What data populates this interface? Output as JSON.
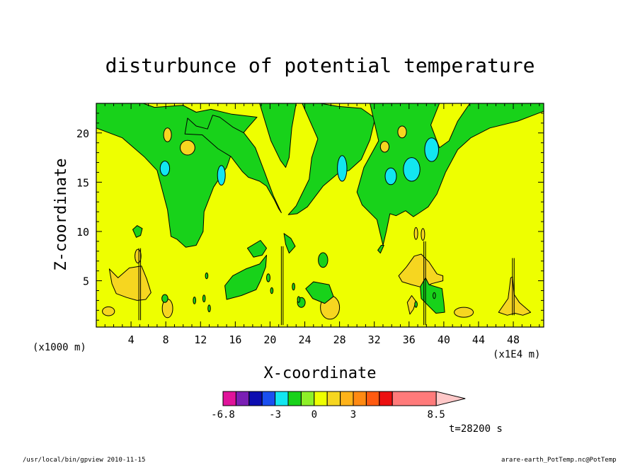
{
  "chart_data": {
    "type": "heatmap",
    "title": "disturbunce of potential temperature",
    "xlabel": "X-coordinate",
    "ylabel": "Z-coordinate",
    "x_unit": "(x1000 m)",
    "x_scale": "(x1E4 m)",
    "xlim": [
      0,
      51.5
    ],
    "ylim": [
      0.3,
      23
    ],
    "x_ticks": [
      "4",
      "8",
      "12",
      "16",
      "20",
      "24",
      "28",
      "32",
      "36",
      "40",
      "44",
      "48"
    ],
    "y_ticks": [
      "5",
      "10",
      "15",
      "20"
    ],
    "colorbar": {
      "levels": [
        -6.8,
        -6,
        -5,
        -4,
        -3,
        -2,
        -1,
        0,
        1,
        2,
        3,
        4,
        5,
        6,
        8.5
      ],
      "colors": [
        "#e0139a",
        "#7a1fb4",
        "#0d0db0",
        "#1a4ff0",
        "#12e6f0",
        "#18d21a",
        "#8ef028",
        "#eeff00",
        "#f6d620",
        "#ffb31a",
        "#ff8a12",
        "#ff5a10",
        "#ec1010",
        "#ff7a7a"
      ],
      "extend_color": "#ffc8c8",
      "tick_labels": [
        "-6.8",
        "-3",
        "0",
        "3",
        "8.5"
      ]
    },
    "colors": {
      "positive_small": "#eeff00",
      "negative_small": "#18d21a",
      "negative_mid": "#12e6f0",
      "positive_mid": "#f6d620"
    }
  },
  "annotations": {
    "time": "t=28200 s",
    "footer_left": "/usr/local/bin/gpview   2010-11-15",
    "footer_right": "arare-earth_PotTemp.nc@PotTemp"
  }
}
